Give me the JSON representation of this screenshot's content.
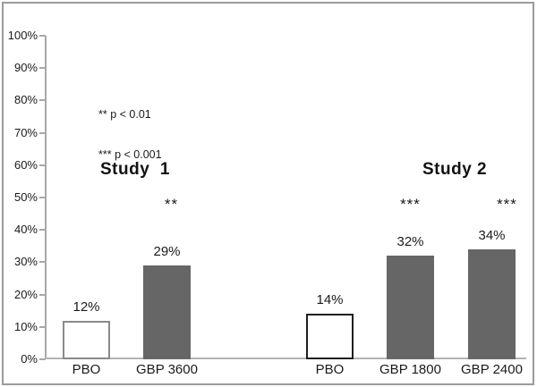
{
  "annotation": {
    "lines": [
      "** p < 0.01",
      "*** p < 0.001"
    ]
  },
  "colors": {
    "background": "#ffffff",
    "frame_border": "#9b9b9b",
    "axis_line": "#a8a8a8",
    "dark_bar_fill": "#666666",
    "pbo_study1_outline": "#8a8a8a",
    "pbo_study2_outline": "#1f1f1f",
    "text": "#1a1a1a"
  },
  "chart_data": {
    "type": "bar",
    "title": "",
    "xlabel": "",
    "ylabel": "",
    "ylim": [
      0,
      100
    ],
    "ytick_step": 10,
    "ytick_labels": [
      "0%",
      "10%",
      "20%",
      "30%",
      "40%",
      "50%",
      "60%",
      "70%",
      "80%",
      "90%",
      "100%"
    ],
    "grid": false,
    "legend_position": "upper-left-inside",
    "legend_notes": [
      "** p < 0.01",
      "*** p < 0.001"
    ],
    "groups": [
      {
        "label": "Study  1",
        "bars": [
          {
            "category": "PBO",
            "value": 12,
            "value_label": "12%",
            "significance": "",
            "fill": "#ffffff",
            "outline": "#8a8a8a"
          },
          {
            "category": "GBP 3600",
            "value": 29,
            "value_label": "29%",
            "significance": "**",
            "fill": "#666666",
            "outline": ""
          }
        ]
      },
      {
        "label": "Study 2",
        "bars": [
          {
            "category": "PBO",
            "value": 14,
            "value_label": "14%",
            "significance": "",
            "fill": "#ffffff",
            "outline": "#1f1f1f"
          },
          {
            "category": "GBP 1800",
            "value": 32,
            "value_label": "32%",
            "significance": "***",
            "fill": "#666666",
            "outline": ""
          },
          {
            "category": "GBP 2400",
            "value": 34,
            "value_label": "34%",
            "significance": "***",
            "fill": "#666666",
            "outline": ""
          }
        ]
      }
    ]
  }
}
